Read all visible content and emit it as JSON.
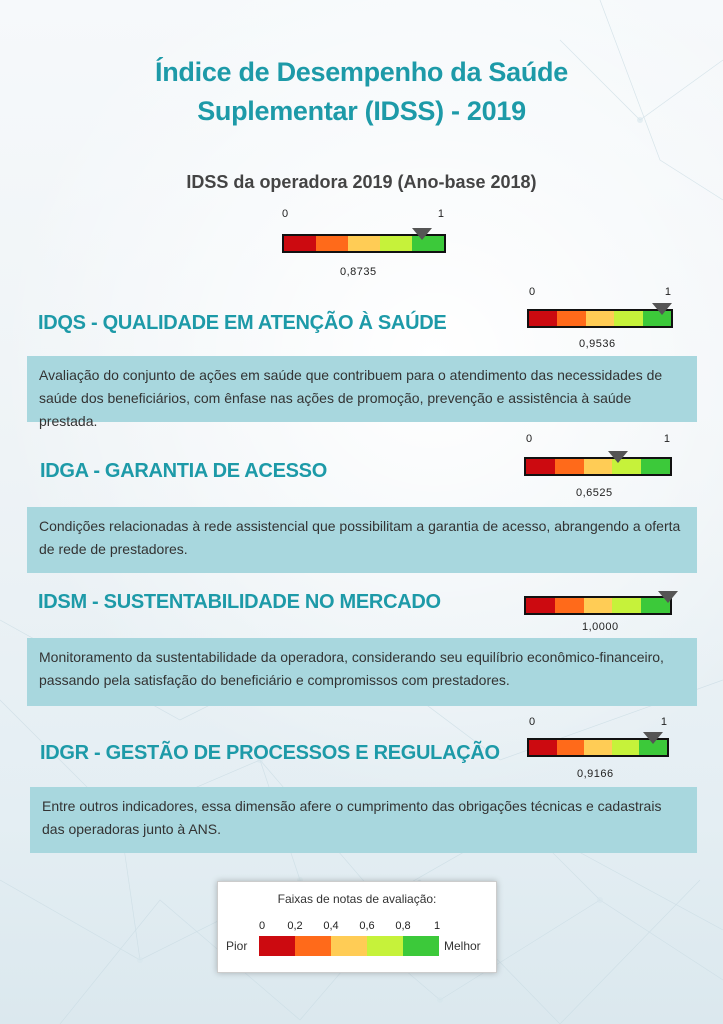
{
  "title_line1": "Índice de Desempenho da Saúde",
  "title_line2": "Suplementar (IDSS) - 2019",
  "subtitle": "IDSS da operadora 2019 (Ano-base 2018)",
  "scale_min": "0",
  "scale_max": "1",
  "band_colors": [
    "#cc0a10",
    "#ff6a1a",
    "#ffcc55",
    "#c6f23a",
    "#3cc93a"
  ],
  "overall": {
    "score": 0.8735,
    "value_label": "0,8735"
  },
  "sections": [
    {
      "title": "IDQS - QUALIDADE EM ATENÇÃO À SAÚDE",
      "text": "Avaliação do conjunto de ações em saúde que contribuem para o atendimento das necessidades de saúde dos beneficiários, com ênfase nas ações de promoção, prevenção e assistência à saúde prestada.",
      "score": 0.9536,
      "value_label": "0,9536"
    },
    {
      "title": "IDGA - GARANTIA DE ACESSO",
      "text": "Condições relacionadas à rede assistencial que possibilitam a garantia de acesso, abrangendo a oferta de rede de prestadores.",
      "score": 0.6525,
      "value_label": "0,6525"
    },
    {
      "title": "IDSM - SUSTENTABILIDADE NO MERCADO",
      "text": "Monitoramento da sustentabilidade da operadora, considerando seu equilíbrio econômico-financeiro, passando pela satisfação do beneficiário e compromissos com prestadores.",
      "score": 1.0,
      "value_label": "1,0000"
    },
    {
      "title": "IDGR - GESTÃO DE PROCESSOS E REGULAÇÃO",
      "text": "Entre outros indicadores, essa dimensão afere o cumprimento das obrigações técnicas e cadastrais das operadoras junto à ANS.",
      "score": 0.9166,
      "value_label": "0,9166"
    }
  ],
  "legend": {
    "title": "Faixas de notas de avaliação:",
    "ticks": [
      "0",
      "0,2",
      "0,4",
      "0,6",
      "0,8",
      "1"
    ],
    "left_label": "Pior",
    "right_label": "Melhor"
  }
}
